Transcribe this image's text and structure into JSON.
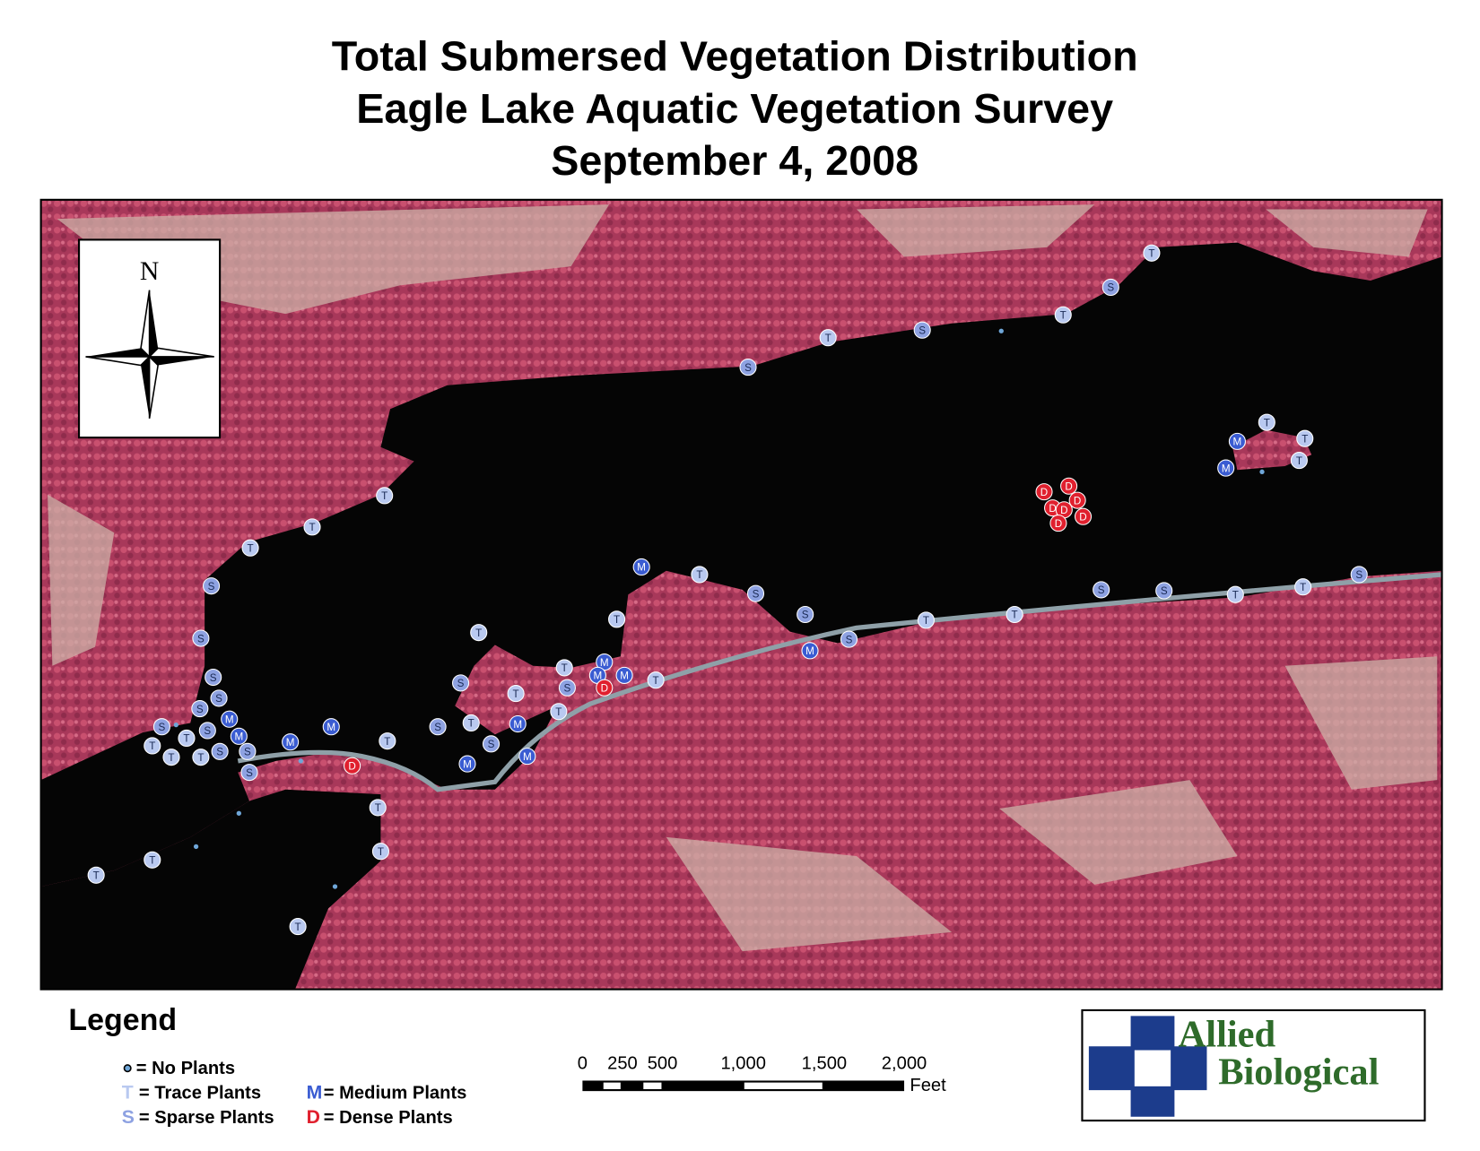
{
  "header": {
    "title_lines": [
      "Total Submersed Vegetation Distribution",
      "Eagle Lake Aquatic Vegetation Survey",
      "September 4, 2008"
    ]
  },
  "compass": {
    "label": "N"
  },
  "legend": {
    "title": "Legend",
    "no_plants": "= No Plants",
    "classes": [
      {
        "code": "T",
        "label": "= Trace Plants",
        "color": "#b9c9f0"
      },
      {
        "code": "S",
        "label": "= Sparse Plants",
        "color": "#8ea2e2"
      },
      {
        "code": "M",
        "label": "= Medium Plants",
        "color": "#3a5cd2"
      },
      {
        "code": "D",
        "label": "= Dense Plants",
        "color": "#e0202e"
      }
    ]
  },
  "scale_bar": {
    "labels": [
      "0",
      "250",
      "500",
      "1,000",
      "1,500",
      "2,000"
    ],
    "unit": "Feet"
  },
  "logo": {
    "line1": "Allied",
    "line2": "Biological"
  },
  "points": [
    "T",
    "S",
    "T",
    "S",
    "T",
    "S",
    "T",
    "T",
    "T",
    "S",
    "S",
    "S",
    "S",
    "S",
    "M",
    "S",
    "S",
    "T",
    "M",
    "T",
    "S",
    "S",
    "T",
    "T",
    "S",
    "M",
    "M",
    "T",
    "D",
    "T",
    "T",
    "T",
    "T",
    "T",
    "T",
    "S",
    "T",
    "S",
    "T",
    "M",
    "S",
    "M",
    "M",
    "T",
    "S",
    "T",
    "M",
    "M",
    "M",
    "D",
    "T",
    "M",
    "T",
    "T",
    "S",
    "S",
    "M",
    "S",
    "T",
    "T",
    "S",
    "S",
    "T",
    "T",
    "S",
    "T",
    "T",
    "M",
    "T",
    "M",
    "D",
    "D",
    "D",
    "D",
    "D",
    "D",
    "D"
  ]
}
